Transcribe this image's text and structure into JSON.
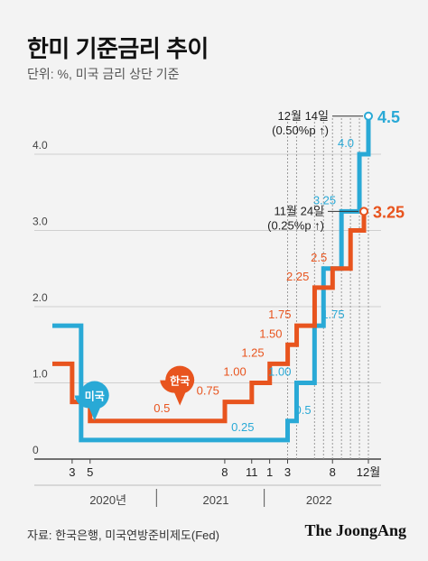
{
  "title": "한미 기준금리 추이",
  "unit": "단위: %, 미국 금리 상단 기준",
  "source": "자료: 한국은행, 미국연방준비제도(Fed)",
  "brand": "The JoongAng",
  "colors": {
    "us": "#29a9d6",
    "kr": "#e8541e",
    "grid": "#cfcfcf",
    "axis": "#444"
  },
  "chart_data": {
    "type": "line",
    "title": "한미 기준금리 추이",
    "ylim": [
      0,
      4.6
    ],
    "yticks": [
      {
        "value": 0,
        "label": "0"
      },
      {
        "value": 1,
        "label": "1.0"
      },
      {
        "value": 2,
        "label": "2.0"
      },
      {
        "value": 3,
        "label": "3.0"
      },
      {
        "value": 4,
        "label": "4.0"
      }
    ],
    "x_month_labels": [
      {
        "m": 2,
        "label": "3"
      },
      {
        "m": 4,
        "label": "5"
      },
      {
        "m": 19,
        "label": "8"
      },
      {
        "m": 22,
        "label": "11"
      },
      {
        "m": 24,
        "label": "1"
      },
      {
        "m": 26,
        "label": "3"
      },
      {
        "m": 31,
        "label": "8"
      },
      {
        "m": 35,
        "label": "12월"
      }
    ],
    "years": [
      {
        "label": "2020년",
        "from": 0,
        "to": 12
      },
      {
        "label": "2021",
        "from": 12,
        "to": 24
      },
      {
        "label": "2022",
        "from": 24,
        "to": 36
      }
    ],
    "series": [
      {
        "name": "미국",
        "key": "us",
        "points": [
          [
            0,
            1.75
          ],
          [
            1,
            1.75
          ],
          [
            2,
            1.75
          ],
          [
            3,
            0.25
          ],
          [
            10,
            0.25
          ],
          [
            20,
            0.25
          ],
          [
            25,
            0.25
          ],
          [
            26,
            0.5
          ],
          [
            27,
            1.0
          ],
          [
            29,
            1.75
          ],
          [
            30,
            2.5
          ],
          [
            32,
            3.25
          ],
          [
            34,
            4.0
          ],
          [
            35,
            4.5
          ]
        ],
        "labels": [
          {
            "m": 26,
            "v": 0.5,
            "text": "0.5",
            "side": "right"
          },
          {
            "m": 27,
            "v": 1.0,
            "text": "1.00",
            "side": "left"
          },
          {
            "m": 21,
            "v": 0.25,
            "text": "0.25",
            "side": "above"
          },
          {
            "m": 29,
            "v": 1.75,
            "text": "1.75",
            "side": "right"
          },
          {
            "m": 32,
            "v": 3.25,
            "text": "3.25",
            "side": "left"
          },
          {
            "m": 34,
            "v": 4.0,
            "text": "4.0",
            "side": "left"
          }
        ]
      },
      {
        "name": "한국",
        "key": "kr",
        "points": [
          [
            0,
            1.25
          ],
          [
            1,
            1.25
          ],
          [
            2,
            0.75
          ],
          [
            4,
            0.5
          ],
          [
            10,
            0.5
          ],
          [
            19,
            0.5
          ],
          [
            19.01,
            0.75
          ],
          [
            22,
            0.75
          ],
          [
            22.01,
            1.0
          ],
          [
            24,
            1.0
          ],
          [
            24.01,
            1.25
          ],
          [
            26,
            1.25
          ],
          [
            26.01,
            1.5
          ],
          [
            27,
            1.5
          ],
          [
            27.01,
            1.75
          ],
          [
            29,
            1.75
          ],
          [
            29.01,
            2.25
          ],
          [
            31,
            2.25
          ],
          [
            31.01,
            2.5
          ],
          [
            33,
            2.5
          ],
          [
            33.01,
            3.0
          ],
          [
            34.5,
            3.0
          ],
          [
            34.5,
            3.25
          ]
        ],
        "labels": [
          {
            "m": 12,
            "v": 0.5,
            "text": "0.5",
            "side": "above"
          },
          {
            "m": 19,
            "v": 0.75,
            "text": "0.75",
            "side": "left"
          },
          {
            "m": 22,
            "v": 1.0,
            "text": "1.00",
            "side": "left"
          },
          {
            "m": 24,
            "v": 1.25,
            "text": "1.25",
            "side": "left"
          },
          {
            "m": 26,
            "v": 1.5,
            "text": "1.50",
            "side": "left"
          },
          {
            "m": 27,
            "v": 1.75,
            "text": "1.75",
            "side": "left"
          },
          {
            "m": 29,
            "v": 2.25,
            "text": "2.25",
            "side": "left"
          },
          {
            "m": 31,
            "v": 2.5,
            "text": "2.5",
            "side": "left"
          }
        ]
      }
    ],
    "markers": [
      {
        "key": "us",
        "name": "미국",
        "m": 4.5,
        "v": 0.55
      },
      {
        "key": "kr",
        "name": "한국",
        "m": 14,
        "v": 0.75
      }
    ],
    "annotations": [
      {
        "key": "us",
        "line1": "12월 14일",
        "line2": "(0.50%p ↑)",
        "value": "4.5",
        "m": 35,
        "v": 4.5
      },
      {
        "key": "kr",
        "line1": "11월 24일",
        "line2": "(0.25%p ↑)",
        "value": "3.25",
        "m": 34.5,
        "v": 3.25
      }
    ]
  }
}
